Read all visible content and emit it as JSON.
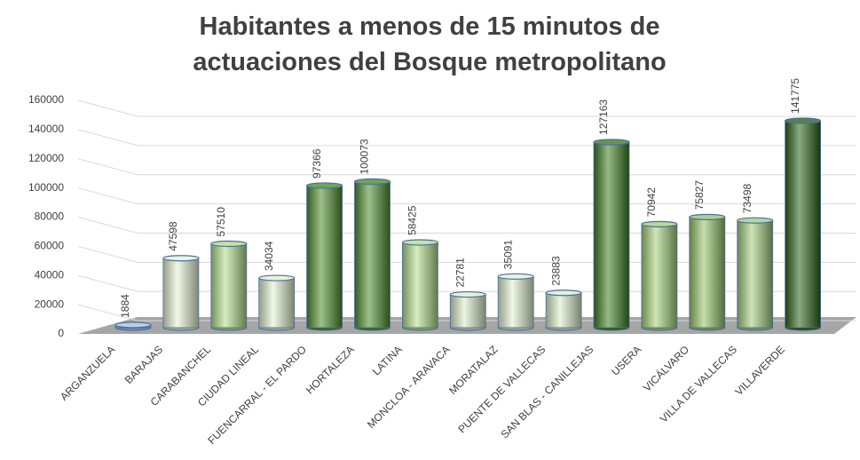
{
  "chart_data": {
    "type": "bar",
    "title": "Habitantes a menos de 15 minutos de actuaciones del Bosque metropolitano",
    "categories": [
      "ARGANZUELA",
      "BARAJAS",
      "CARABANCHEL",
      "CIUDAD LINEAL",
      "FUENCARRAL - EL PARDO",
      "HORTALEZA",
      "LATINA",
      "MONCLOA - ARAVACA",
      "MORATALAZ",
      "PUENTE DE VALLECAS",
      "SAN BLAS - CANILLEJAS",
      "USERA",
      "VICÁLVARO",
      "VILLA DE VALLECAS",
      "VILLAVERDE"
    ],
    "values": [
      1884,
      47598,
      57510,
      34034,
      97366,
      100073,
      58425,
      22781,
      35091,
      23883,
      127163,
      70942,
      75827,
      73498,
      141775
    ],
    "colors": [
      "#a8c4e4",
      "#e6f4d2",
      "#b3de8a",
      "#e2f1cf",
      "#4d8d2d",
      "#4d8d2d",
      "#b3de8a",
      "#dcedc8",
      "#e2f1cf",
      "#dcedc8",
      "#3d7d23",
      "#a6d27a",
      "#96c66c",
      "#a3cd7e",
      "#2c6318"
    ],
    "ylim": [
      0,
      160000
    ],
    "yticks": [
      0,
      20000,
      40000,
      60000,
      80000,
      100000,
      120000,
      140000,
      160000
    ],
    "grid": true
  }
}
